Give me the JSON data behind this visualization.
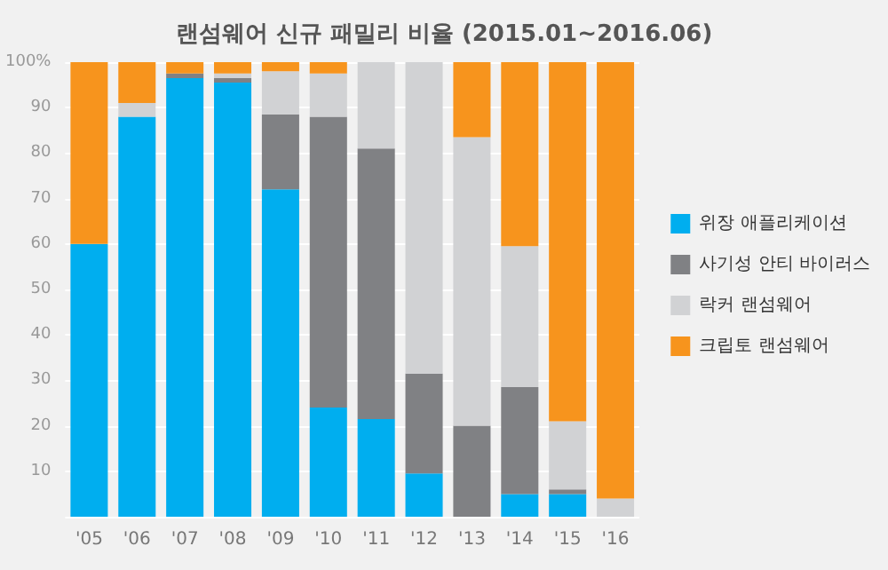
{
  "chart_data": {
    "type": "bar",
    "title": "랜섬웨어 신규 패밀리 비율 (2015.01~2016.06)",
    "stacked": true,
    "categories": [
      "'05",
      "'06",
      "'07",
      "'08",
      "'09",
      "'10",
      "'11",
      "'12",
      "'13",
      "'14",
      "'15",
      "'16"
    ],
    "series": [
      {
        "name": "위장 애플리케이션",
        "color": "#00aeef",
        "values": [
          60,
          88,
          96.5,
          95.5,
          72,
          24,
          21.5,
          9.5,
          0,
          5,
          5,
          0
        ]
      },
      {
        "name": "사기성 안티 바이러스",
        "color": "#808184",
        "values": [
          0,
          0,
          1,
          1,
          16.5,
          64,
          59.5,
          22,
          20,
          23.5,
          1,
          0
        ]
      },
      {
        "name": "락커 랜섬웨어",
        "color": "#d1d2d4",
        "values": [
          0,
          3,
          0,
          1,
          9.5,
          9.5,
          19,
          68.5,
          63.5,
          31,
          15,
          4
        ]
      },
      {
        "name": "크립토 랜섬웨어",
        "color": "#f7941d",
        "values": [
          40,
          9,
          2.5,
          2.5,
          2,
          2.5,
          0,
          0,
          16.5,
          40.5,
          79,
          96
        ]
      }
    ],
    "ylim": [
      0,
      100
    ],
    "yticks": [
      {
        "value": 0,
        "label": null
      },
      10,
      20,
      30,
      40,
      50,
      60,
      70,
      80,
      90,
      {
        "value": 100,
        "label": "100%"
      }
    ],
    "grid": "y",
    "legend": "right"
  }
}
